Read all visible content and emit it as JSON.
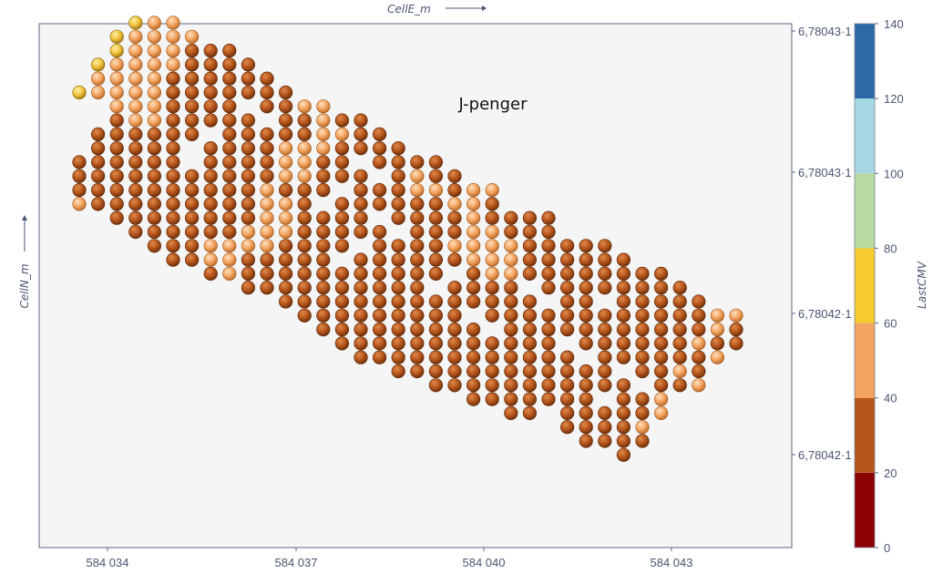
{
  "chart_data": {
    "type": "scatter",
    "title": "J-penger",
    "xlabel": "CellE_m",
    "ylabel": "CellN_m",
    "colorbar_label": "LastCMV",
    "x_ticks": [
      "584 034",
      "584 037",
      "584 040",
      "584 043"
    ],
    "y_ticks": [
      "6,78043·1",
      "6,78043·1",
      "6,78042·1",
      "6,78042·1"
    ],
    "colorbar": {
      "ticks": [
        "140",
        "120",
        "100",
        "80",
        "60",
        "40",
        "20",
        "0"
      ],
      "bins": [
        {
          "min": 0,
          "max": 20,
          "color": "#8b0000"
        },
        {
          "min": 20,
          "max": 40,
          "color": "#b5551b"
        },
        {
          "min": 40,
          "max": 60,
          "color": "#f4a460"
        },
        {
          "min": 60,
          "max": 80,
          "color": "#f5cb2f"
        },
        {
          "min": 80,
          "max": 100,
          "color": "#b8d9a0"
        },
        {
          "min": 100,
          "max": 120,
          "color": "#a6d8e3"
        },
        {
          "min": 120,
          "max": 140,
          "color": "#2f6aa8"
        }
      ]
    },
    "grid": false,
    "point_classes": {
      "low": "20-40",
      "mid": "40-60",
      "high": "60-80"
    },
    "point_rows_note": "cells laid out on a regular grid; each row lists [first column, last column]",
    "grid_rows": [
      {
        "row": 0,
        "from": 3,
        "to": 5,
        "exceptions": {
          "3": "high",
          "4": "mid",
          "5": "mid"
        }
      },
      {
        "row": 1,
        "from": 2,
        "to": 6,
        "exceptions": {
          "2": "high",
          "3": "mid",
          "4": "mid",
          "5": "mid",
          "6": "mid"
        }
      },
      {
        "row": 2,
        "from": 2,
        "to": 8,
        "exceptions": {
          "2": "high",
          "3": "mid",
          "4": "mid",
          "5": "mid"
        }
      },
      {
        "row": 3,
        "from": 1,
        "to": 9,
        "exceptions": {
          "1": "high",
          "2": "mid",
          "3": "mid",
          "4": "mid",
          "5": "mid"
        }
      },
      {
        "row": 4,
        "from": 1,
        "to": 10,
        "exceptions": {
          "1": "mid",
          "2": "mid",
          "3": "mid",
          "4": "mid"
        }
      },
      {
        "row": 5,
        "from": 0,
        "to": 11,
        "exceptions": {
          "0": "high",
          "1": "mid",
          "2": "mid",
          "3": "mid",
          "4": "mid"
        }
      },
      {
        "row": 6,
        "from": 2,
        "to": 13,
        "exceptions": {
          "2": "mid",
          "3": "mid",
          "4": "mid",
          "12": "mid",
          "13": "mid"
        }
      },
      {
        "row": 7,
        "from": 2,
        "to": 15,
        "exceptions": {
          "3": "mid",
          "4": "mid",
          "13": "mid"
        }
      },
      {
        "row": 8,
        "from": 1,
        "to": 16,
        "exceptions": {
          "13": "mid",
          "14": "mid"
        }
      },
      {
        "row": 9,
        "from": 1,
        "to": 17,
        "exceptions": {
          "11": "mid",
          "12": "mid",
          "13": "mid"
        }
      },
      {
        "row": 10,
        "from": 0,
        "to": 19,
        "exceptions": {
          "11": "mid",
          "12": "mid"
        }
      },
      {
        "row": 11,
        "from": 0,
        "to": 20,
        "exceptions": {
          "11": "mid",
          "12": "mid",
          "18": "mid"
        }
      },
      {
        "row": 12,
        "from": 0,
        "to": 22,
        "exceptions": {
          "10": "mid",
          "18": "mid",
          "19": "mid",
          "21": "mid",
          "22": "mid"
        }
      },
      {
        "row": 13,
        "from": 0,
        "to": 22,
        "exceptions": {
          "0": "mid",
          "10": "mid",
          "11": "mid",
          "20": "mid",
          "21": "mid"
        }
      },
      {
        "row": 14,
        "from": 2,
        "to": 25,
        "exceptions": {
          "10": "mid",
          "11": "mid",
          "21": "mid"
        }
      },
      {
        "row": 15,
        "from": 3,
        "to": 25,
        "exceptions": {
          "9": "mid",
          "10": "mid",
          "11": "mid",
          "21": "mid",
          "22": "mid"
        }
      },
      {
        "row": 16,
        "from": 4,
        "to": 28,
        "exceptions": {
          "7": "mid",
          "8": "mid",
          "9": "mid",
          "10": "mid",
          "20": "mid",
          "21": "mid",
          "22": "mid",
          "23": "mid"
        }
      },
      {
        "row": 17,
        "from": 5,
        "to": 29,
        "exceptions": {
          "7": "mid",
          "8": "mid",
          "21": "mid",
          "22": "mid",
          "23": "mid"
        }
      },
      {
        "row": 18,
        "from": 7,
        "to": 31,
        "exceptions": {
          "8": "mid",
          "22": "mid",
          "23": "mid"
        }
      },
      {
        "row": 19,
        "from": 9,
        "to": 32,
        "exceptions": {}
      },
      {
        "row": 20,
        "from": 11,
        "to": 33,
        "exceptions": {}
      },
      {
        "row": 21,
        "from": 12,
        "to": 35,
        "exceptions": {
          "34": "mid",
          "35": "mid"
        }
      },
      {
        "row": 22,
        "from": 13,
        "to": 35,
        "exceptions": {
          "34": "mid"
        }
      },
      {
        "row": 23,
        "from": 14,
        "to": 35,
        "exceptions": {
          "33": "mid"
        }
      },
      {
        "row": 24,
        "from": 15,
        "to": 34,
        "exceptions": {
          "34": "mid"
        }
      },
      {
        "row": 25,
        "from": 17,
        "to": 33,
        "exceptions": {
          "32": "mid"
        }
      },
      {
        "row": 26,
        "from": 19,
        "to": 33,
        "exceptions": {
          "33": "mid"
        }
      },
      {
        "row": 27,
        "from": 21,
        "to": 31,
        "exceptions": {
          "31": "mid"
        }
      },
      {
        "row": 28,
        "from": 23,
        "to": 31,
        "exceptions": {
          "31": "mid"
        }
      },
      {
        "row": 29,
        "from": 26,
        "to": 30,
        "exceptions": {
          "30": "mid"
        }
      },
      {
        "row": 30,
        "from": 27,
        "to": 30,
        "exceptions": {}
      },
      {
        "row": 31,
        "from": 29,
        "to": 29,
        "exceptions": {}
      }
    ],
    "grid_holes": [
      [
        6,
        9
      ],
      [
        7,
        10
      ],
      [
        8,
        7
      ],
      [
        9,
        6
      ],
      [
        10,
        6
      ],
      [
        10,
        15
      ],
      [
        11,
        16
      ],
      [
        12,
        14
      ],
      [
        13,
        13
      ],
      [
        14,
        16
      ],
      [
        15,
        17
      ],
      [
        16,
        15
      ],
      [
        17,
        14
      ],
      [
        18,
        20
      ],
      [
        19,
        19
      ],
      [
        19,
        24
      ],
      [
        20,
        25
      ],
      [
        20,
        28
      ],
      [
        21,
        21
      ],
      [
        22,
        22
      ],
      [
        23,
        26
      ],
      [
        24,
        27
      ],
      [
        25,
        29
      ],
      [
        26,
        30
      ],
      [
        27,
        28
      ],
      [
        28,
        25
      ]
    ]
  }
}
